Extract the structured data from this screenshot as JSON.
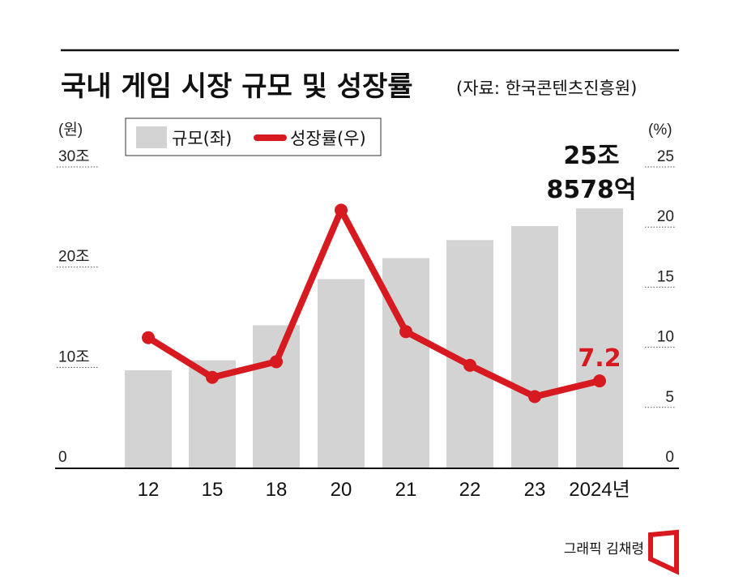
{
  "title": "국내 게임 시장 규모 및 성장률",
  "source": "(자료: 한국콘텐츠진흥원)",
  "credit": "그래픽 김채령",
  "colors": {
    "bar": "#d3d3d3",
    "line": "#d71920",
    "text": "#111111"
  },
  "chart_data": {
    "type": "bar+line",
    "categories": [
      "12",
      "15",
      "18",
      "20",
      "21",
      "22",
      "23",
      "2024년"
    ],
    "series": [
      {
        "name": "규모(좌)",
        "type": "bar",
        "axis": "left",
        "unit": "조 원",
        "values": [
          9.7,
          10.7,
          14.2,
          18.8,
          20.9,
          22.7,
          24.1,
          25.86
        ]
      },
      {
        "name": "성장률(우)",
        "type": "line",
        "axis": "right",
        "unit": "%",
        "values": [
          10.8,
          7.5,
          8.8,
          21.4,
          11.3,
          8.5,
          5.9,
          7.2
        ]
      }
    ],
    "left_axis": {
      "label": "(원)",
      "range": [
        0,
        30
      ],
      "ticks": [
        0,
        10,
        20,
        30
      ],
      "tick_labels": [
        "0",
        "10조",
        "20조",
        "30조"
      ]
    },
    "right_axis": {
      "label": "(%)",
      "range": [
        0,
        25
      ],
      "ticks": [
        0,
        5,
        10,
        15,
        20,
        25
      ],
      "tick_labels": [
        "0",
        "5",
        "10",
        "15",
        "20",
        "25"
      ]
    },
    "annotations": {
      "bar_last_line1": "25조",
      "bar_last_line2": "8578억",
      "line_last": "7.2"
    },
    "legend": {
      "position": "top-left",
      "bar_label": "규모(좌)",
      "line_label": "성장률(우)"
    }
  }
}
